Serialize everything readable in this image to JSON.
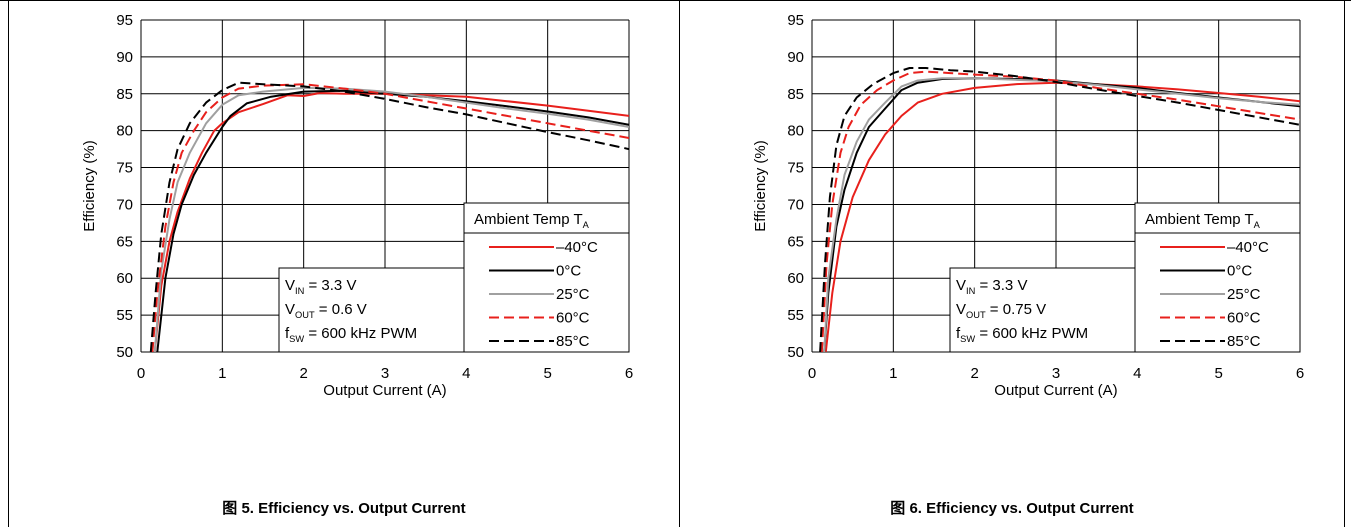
{
  "chart_data": [
    {
      "type": "line",
      "caption": "图 5. Efficiency vs. Output Current",
      "xlabel": "Output Current (A)",
      "ylabel": "Efficiency (%)",
      "xlim": [
        0,
        6
      ],
      "ylim": [
        50,
        95
      ],
      "xticks": [
        0,
        1,
        2,
        3,
        4,
        5,
        6
      ],
      "yticks": [
        50,
        55,
        60,
        65,
        70,
        75,
        80,
        85,
        90,
        95
      ],
      "grid": true,
      "annotation": {
        "vin": "3.3 V",
        "vout": "0.6 V",
        "fsw": "600 kHz PWM"
      },
      "legend": {
        "title": "Ambient Temp T",
        "title_sub": "A",
        "placement": "bottom-right"
      },
      "series": [
        {
          "name": "–40°C",
          "color": "#e8201c",
          "dash": false,
          "x": [
            0.17,
            0.25,
            0.35,
            0.45,
            0.6,
            0.75,
            0.9,
            1.0,
            1.2,
            1.5,
            1.8,
            2.0,
            2.2,
            2.5,
            3.0,
            3.5,
            4.0,
            4.5,
            5.0,
            5.5,
            6.0
          ],
          "y": [
            50,
            59,
            65,
            69,
            73.5,
            77,
            80,
            81,
            82.5,
            83.6,
            84.8,
            84.7,
            85.1,
            85.0,
            85.0,
            84.8,
            84.6,
            84.0,
            83.4,
            82.7,
            82.0
          ]
        },
        {
          "name": "0°C",
          "color": "#000000",
          "dash": false,
          "x": [
            0.2,
            0.3,
            0.4,
            0.5,
            0.65,
            0.8,
            1.0,
            1.1,
            1.3,
            1.6,
            2.0,
            2.5,
            3.0,
            3.5,
            4.0,
            4.5,
            5.0,
            5.5,
            6.0
          ],
          "y": [
            50,
            60,
            66,
            70,
            74,
            77,
            80.5,
            82,
            83.7,
            84.6,
            85.3,
            85.4,
            85.0,
            84.6,
            84.0,
            83.3,
            82.6,
            81.8,
            80.8
          ]
        },
        {
          "name": "25°C",
          "color": "#a0a0a0",
          "dash": false,
          "x": [
            0.17,
            0.25,
            0.35,
            0.45,
            0.6,
            0.8,
            1.0,
            1.2,
            1.5,
            2.0,
            2.5,
            3.0,
            3.5,
            4.0,
            4.5,
            5.0,
            5.5,
            6.0
          ],
          "y": [
            50,
            61,
            68,
            73,
            77,
            81,
            83.5,
            84.8,
            85.3,
            85.8,
            85.7,
            85.3,
            84.6,
            83.8,
            83.0,
            82.3,
            81.5,
            80.5
          ]
        },
        {
          "name": "60°C",
          "color": "#e8201c",
          "dash": true,
          "x": [
            0.14,
            0.2,
            0.3,
            0.4,
            0.5,
            0.65,
            0.8,
            1.0,
            1.2,
            1.5,
            2.0,
            2.5,
            3.0,
            3.5,
            4.0,
            4.5,
            5.0,
            5.5,
            6.0
          ],
          "y": [
            50,
            58,
            67,
            73,
            77,
            80,
            82.5,
            84.5,
            85.7,
            86.1,
            86.3,
            85.7,
            85.0,
            84.0,
            83.0,
            82.0,
            81.0,
            80.0,
            79.0
          ]
        },
        {
          "name": "85°C",
          "color": "#000000",
          "dash": true,
          "x": [
            0.12,
            0.18,
            0.25,
            0.35,
            0.45,
            0.6,
            0.8,
            1.0,
            1.2,
            1.5,
            2.0,
            2.5,
            3.0,
            3.5,
            4.0,
            4.5,
            5.0,
            5.5,
            6.0
          ],
          "y": [
            50,
            58,
            66,
            73,
            77.5,
            81,
            83.8,
            85.5,
            86.5,
            86.3,
            86.0,
            85.3,
            84.3,
            83.2,
            82.2,
            81.0,
            79.8,
            78.7,
            77.5
          ]
        }
      ]
    },
    {
      "type": "line",
      "caption": "图 6. Efficiency vs. Output Current",
      "xlabel": "Output Current (A)",
      "ylabel": "Efficiency (%)",
      "xlim": [
        0,
        6
      ],
      "ylim": [
        50,
        95
      ],
      "xticks": [
        0,
        1,
        2,
        3,
        4,
        5,
        6
      ],
      "yticks": [
        50,
        55,
        60,
        65,
        70,
        75,
        80,
        85,
        90,
        95
      ],
      "grid": true,
      "annotation": {
        "vin": "3.3 V",
        "vout": "0.75 V",
        "fsw": "600 kHz PWM"
      },
      "legend": {
        "title": "Ambient Temp T",
        "title_sub": "A",
        "placement": "bottom-right"
      },
      "series": [
        {
          "name": "–40°C",
          "color": "#e8201c",
          "dash": false,
          "x": [
            0.17,
            0.25,
            0.35,
            0.5,
            0.7,
            0.9,
            1.1,
            1.3,
            1.6,
            2.0,
            2.5,
            3.0,
            3.5,
            4.0,
            4.5,
            5.0,
            5.5,
            6.0
          ],
          "y": [
            50,
            58,
            65,
            71,
            76,
            79.5,
            82,
            83.8,
            85.0,
            85.8,
            86.3,
            86.5,
            86.3,
            86.0,
            85.6,
            85.1,
            84.6,
            84.0
          ]
        },
        {
          "name": "0°C",
          "color": "#000000",
          "dash": false,
          "x": [
            0.15,
            0.2,
            0.3,
            0.4,
            0.55,
            0.7,
            0.9,
            1.1,
            1.3,
            1.6,
            2.0,
            2.5,
            3.0,
            3.5,
            4.0,
            4.5,
            5.0,
            5.5,
            6.0
          ],
          "y": [
            50,
            58,
            67,
            72,
            77,
            80.5,
            83,
            85.5,
            86.5,
            87.0,
            87.1,
            87.0,
            86.8,
            86.3,
            85.8,
            85.1,
            84.5,
            83.9,
            83.3
          ]
        },
        {
          "name": "25°C",
          "color": "#a0a0a0",
          "dash": false,
          "x": [
            0.15,
            0.2,
            0.3,
            0.4,
            0.55,
            0.7,
            0.9,
            1.1,
            1.3,
            1.6,
            2.0,
            2.5,
            3.0,
            3.5,
            4.0,
            4.5,
            5.0,
            5.5,
            6.0
          ],
          "y": [
            50,
            60,
            68,
            74,
            78.5,
            81.5,
            83.8,
            86,
            86.8,
            87.1,
            87.1,
            86.9,
            86.7,
            86.2,
            85.6,
            85.0,
            84.4,
            83.9,
            83.5
          ]
        },
        {
          "name": "60°C",
          "color": "#e8201c",
          "dash": true,
          "x": [
            0.12,
            0.18,
            0.25,
            0.35,
            0.45,
            0.6,
            0.8,
            1.0,
            1.2,
            1.4,
            1.7,
            2.0,
            2.5,
            3.0,
            3.5,
            4.0,
            4.5,
            5.0,
            5.5,
            6.0
          ],
          "y": [
            50,
            62,
            70,
            77,
            80.5,
            83.5,
            85.5,
            86.8,
            87.8,
            88.0,
            87.8,
            87.6,
            87.3,
            86.8,
            85.8,
            85.0,
            84.2,
            83.3,
            82.4,
            81.5
          ]
        },
        {
          "name": "85°C",
          "color": "#000000",
          "dash": true,
          "x": [
            0.1,
            0.16,
            0.22,
            0.3,
            0.4,
            0.55,
            0.75,
            1.0,
            1.2,
            1.4,
            1.7,
            2.0,
            2.5,
            3.0,
            3.5,
            4.0,
            4.5,
            5.0,
            5.5,
            6.0
          ],
          "y": [
            50,
            62,
            71,
            78,
            82,
            84.5,
            86.3,
            87.8,
            88.5,
            88.5,
            88.2,
            88.0,
            87.4,
            86.6,
            85.6,
            84.7,
            83.8,
            82.8,
            81.8,
            80.8
          ]
        }
      ]
    }
  ]
}
